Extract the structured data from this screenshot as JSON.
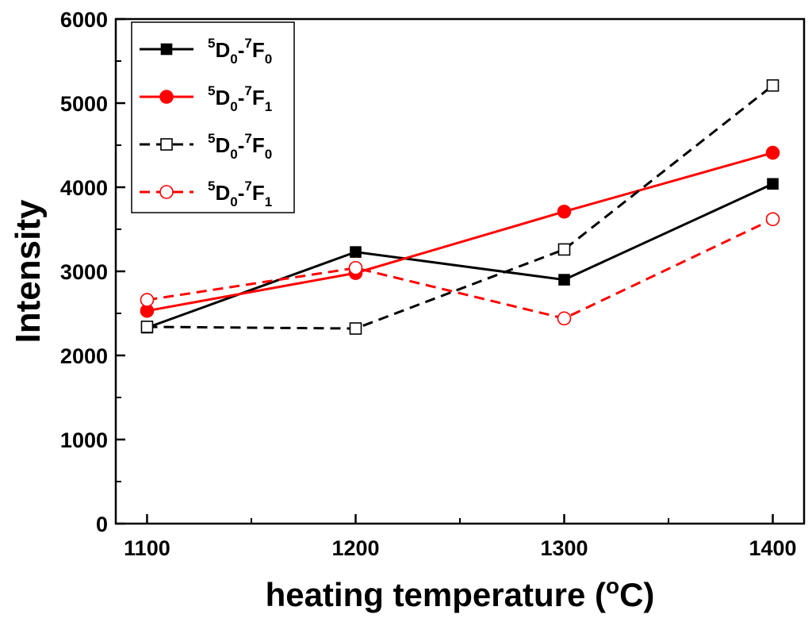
{
  "chart_data": {
    "type": "line",
    "xlabel": "heating temperature (",
    "xlabel_sup": "o",
    "xlabel_end": "C)",
    "ylabel": "Intensity",
    "x": [
      1100,
      1200,
      1300,
      1400
    ],
    "xticks": [
      "1100",
      "1200",
      "1300",
      "1400"
    ],
    "xlim": [
      1085,
      1415
    ],
    "yticks": [
      "0",
      "1000",
      "2000",
      "3000",
      "4000",
      "5000",
      "6000"
    ],
    "ylim": [
      0,
      6000
    ],
    "grid": false,
    "legend_position": "top-left",
    "series": [
      {
        "legend_sup1": "5",
        "legend_D": "D",
        "legend_sub1": "0",
        "legend_dash": "-",
        "legend_sup2": "7",
        "legend_F": "F",
        "legend_sub2": "0",
        "color": "#000000",
        "marker": "square",
        "filled": true,
        "dashed": false,
        "values": [
          2330,
          3230,
          2900,
          4040
        ]
      },
      {
        "legend_sup1": "5",
        "legend_D": "D",
        "legend_sub1": "0",
        "legend_dash": "-",
        "legend_sup2": "7",
        "legend_F": "F",
        "legend_sub2": "1",
        "color": "#ff0000",
        "marker": "circle",
        "filled": true,
        "dashed": false,
        "values": [
          2530,
          2980,
          3710,
          4410
        ]
      },
      {
        "legend_sup1": "5",
        "legend_D": "D",
        "legend_sub1": "0",
        "legend_dash": "-",
        "legend_sup2": "7",
        "legend_F": "F",
        "legend_sub2": "0",
        "color": "#000000",
        "marker": "square",
        "filled": false,
        "dashed": true,
        "values": [
          2340,
          2320,
          3260,
          5210
        ]
      },
      {
        "legend_sup1": "5",
        "legend_D": "D",
        "legend_sub1": "0",
        "legend_dash": "-",
        "legend_sup2": "7",
        "legend_F": "F",
        "legend_sub2": "1",
        "color": "#ff0000",
        "marker": "circle",
        "filled": false,
        "dashed": true,
        "values": [
          2660,
          3040,
          2440,
          3620
        ]
      }
    ]
  }
}
